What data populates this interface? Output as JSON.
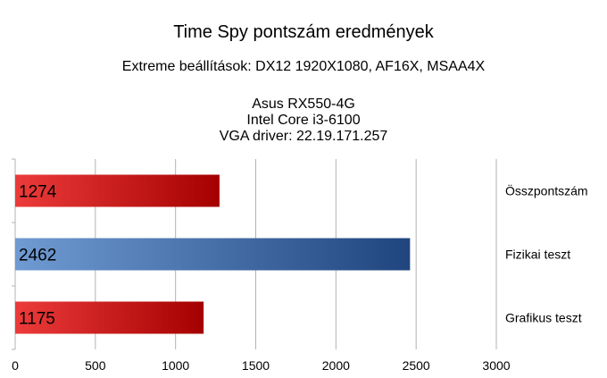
{
  "chart_data": {
    "type": "bar",
    "orientation": "horizontal",
    "title": "Time Spy pontszám eredmények",
    "subtitle": "Extreme beállítások: DX12 1920X1080, AF16X, MSAA4X",
    "info_lines": [
      "Asus RX550-4G",
      "Intel Core i3-6100",
      "VGA driver: 22.19.171.257"
    ],
    "categories": [
      "Összpontszám",
      "Fizikai teszt",
      "Grafikus teszt"
    ],
    "values": [
      1274,
      2462,
      1175
    ],
    "bar_colors": [
      "red",
      "blue",
      "red"
    ],
    "xlim": [
      0,
      3000
    ],
    "xticks": [
      0,
      500,
      1000,
      1500,
      2000,
      2500,
      3000
    ],
    "grid": true,
    "category_label_position": "right"
  },
  "colors": {
    "red_light": "#ec3b3b",
    "red_dark": "#a50000",
    "blue_light": "#6f9bd2",
    "blue_dark": "#20457e",
    "grid": "#b3b3b3"
  }
}
